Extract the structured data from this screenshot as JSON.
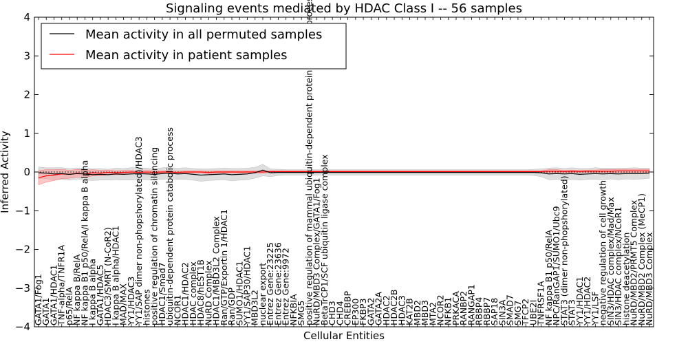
{
  "chart_data": {
    "type": "line",
    "title": "Signaling events mediated by HDAC Class I -- 56 samples",
    "xlabel": "Cellular Entities",
    "ylabel": "Inferred Activity",
    "ylim": [
      -4,
      4
    ],
    "yticks": [
      "4",
      "3",
      "2",
      "1",
      "0",
      "−1",
      "−2",
      "−3",
      "−4"
    ],
    "legend": {
      "placement": "top-left",
      "entries": [
        "Mean activity in all permuted samples",
        "Mean activity in patient samples"
      ]
    },
    "colors": {
      "permuted": "#000000",
      "patient": "#ff0000",
      "permuted_band": "#d8d8d8",
      "patient_band": "#ff9a9a"
    },
    "categories": [
      "GATA1/Fog1",
      "GATA1",
      "GATA1/HDAC1",
      "TNF-alpha/TNFR1A",
      "p65/RelA",
      "NF kappa B/RelA",
      "NF kappa B1 p50/RelA/I kappa B alpha",
      "I kappa B alpha",
      "GATA1/HDAC5",
      "HDAC3/SMRT (N-CoR2)",
      "I kappa B alpha/HDAC1",
      "MAD/MAX",
      "YY1/HDAC3",
      "YY1/SAP dimer non-phopshorylated)/HDAC3",
      "histones",
      "positive regulation of chromatin silencing",
      "HDAC1/Smad7",
      "ubiquitin-dependent protein catabolic process",
      "NCOR1",
      "HDAC1/HDAC2",
      "HDAC complex",
      "HDAC8/hEST1B",
      "NuRD Complex",
      "HDAC1/MBD3L2 Complex",
      "Ran/GTP/Exportin 1/HDAC1",
      "Ran/GDP",
      "SUMO1/HDAC1",
      "YY1/SAP30/HDAC1",
      "MBD3L2",
      "nuclear export",
      "Entrez Gene:23225",
      "Entrez Gene:23636",
      "Entrez Gene:9972",
      "NFKBIA",
      "SMG5",
      "positive regulation of mammal ubiquitin-dependent protein catabolic process",
      "NuRD/MBD3 Complex/GATA1/Fog1",
      "BetaTrCP1/SCF ubiquitin ligase complex",
      "CHD3",
      "CHD4",
      "CREBBP",
      "EP300",
      "FKBP3",
      "GATA2",
      "GATA2A",
      "HDAC2",
      "HDAC2B",
      "HDAC3",
      "KAT2B",
      "MBD2",
      "MBD3",
      "MTA2",
      "NCOR2",
      "NFKB1",
      "PRKACA",
      "RANBP2",
      "RANGAP1",
      "RBBP4",
      "RBBP7",
      "SAP18",
      "SIN3A",
      "SMAD7",
      "SMG7",
      "TFCP2",
      "UBE2I",
      "TNFRSF1A",
      "NF kappa B1 p50/RelA",
      "NPC/RanGAP1/SUMO1/Ubc9",
      "STAT3 (dimer non-phopshorylated)",
      "STAT3",
      "YY1/HDAC1",
      "YY1/HDAC2",
      "YY1/LSF",
      "negative regulation of cell growth",
      "SIN3/HDAC complex/Mad/Max",
      "SIN3/HDAC complex/NCoR1",
      "histone deacetylation",
      "NuRD/MBD2/PRMT5 Complex",
      "NuRD/MBD2 Complex (MeCP1)",
      "NuRD/MBD3 Complex"
    ],
    "x_tick_labels": [
      "GATA1/Fog1",
      "GATA1",
      "GATA1/HDAC1",
      "TNF-alpha/TNFR1A",
      "p65/RelA",
      "NF kappa B/RelA",
      "NF kappa B1 p50/RelA/I kappa B alpha",
      "I kappa B alpha",
      "GATA1/HDAC5",
      "HDAC3/SMRT (N-CoR2)",
      "I kappa B alpha/HDAC1",
      "MAD/MAX",
      "YY1/HDAC3",
      "YY1/SAP dimer non-phopshorylated)/HDAC3",
      "histones",
      "positive regulation of chromatin silencing",
      "HDAC1/Smad7",
      "ubiquitin-dependent protein catabolic process",
      "NCOR1",
      "HDAC1/HDAC2",
      "HDAC complex",
      "HDAC8/hEST1B",
      "NuRD Complex",
      "HDAC1/MBD3L2 Complex",
      "Ran/GTP/Exportin 1/HDAC1",
      "Ran/GDP",
      "SUMO1/HDAC1",
      "YY1/SAP30/HDAC1",
      "MBD3L2",
      "nuclear export",
      "Entrez Gene:23225",
      "Entrez Gene:23636",
      "Entrez Gene:9972",
      "NFKBIA",
      "SMG5",
      "positive regulation of mammal ubiquitin-dependent protein catabolic process",
      "NuRD/MBD3 Complex/GATA1/Fog1",
      "BetaTrCP1/SCF ubiquitin ligase complex",
      "CHD3",
      "CHD4",
      "CREBBP",
      "EP300",
      "FKBP3",
      "GATA2",
      "GATA2A",
      "HDAC2",
      "HDAC2B",
      "HDAC3",
      "KAT2B",
      "MBD2",
      "MBD3",
      "MTA2",
      "NCOR2",
      "NFKB1",
      "PRKACA",
      "RANBP2",
      "RANGAP1",
      "RBBP4",
      "RBBP7",
      "SAP18",
      "SIN3A",
      "SMAD7",
      "SMG7",
      "TFCP2",
      "UBE2I",
      "TNFRSF1A",
      "NF kappa B1 p50/RelA",
      "NPC/RanGAP1/SUMO1/Ubc9",
      "STAT3 (dimer non-phopshorylated)",
      "STAT3",
      "YY1/HDAC1",
      "YY1/HDAC2",
      "YY1/LSF",
      "negative regulation of cell growth",
      "SIN3/HDAC complex/Mad/Max",
      "SIN3/HDAC complex/NCoR1",
      "histone deacetylation",
      "NuRD/MBD2/PRMT5 Complex",
      "NuRD/MBD2 Complex (MeCP1)",
      "NuRD/MBD3 Complex"
    ],
    "series": [
      {
        "name": "Mean activity in all permuted samples",
        "color": "#000000",
        "values": [
          -0.02,
          -0.03,
          -0.05,
          -0.04,
          -0.06,
          -0.04,
          -0.05,
          -0.07,
          -0.06,
          -0.07,
          -0.05,
          -0.06,
          -0.05,
          -0.04,
          -0.05,
          -0.06,
          -0.04,
          -0.03,
          -0.05,
          -0.04,
          -0.06,
          -0.08,
          -0.07,
          -0.06,
          -0.05,
          -0.07,
          -0.06,
          -0.05,
          -0.02,
          0.05,
          -0.02,
          -0.01,
          -0.01,
          -0.01,
          -0.01,
          -0.01,
          -0.01,
          -0.01,
          -0.01,
          -0.01,
          -0.01,
          -0.01,
          -0.01,
          -0.01,
          -0.01,
          -0.01,
          -0.01,
          -0.01,
          -0.01,
          -0.01,
          -0.01,
          -0.01,
          -0.01,
          -0.01,
          -0.01,
          -0.01,
          -0.01,
          -0.01,
          -0.01,
          -0.01,
          -0.01,
          -0.01,
          -0.01,
          -0.01,
          -0.01,
          -0.02,
          -0.05,
          -0.04,
          -0.05,
          -0.04,
          -0.06,
          -0.05,
          -0.04,
          -0.05,
          -0.04,
          -0.05,
          -0.04,
          -0.04,
          -0.04,
          -0.03
        ],
        "band": [
          0.15,
          0.14,
          0.16,
          0.15,
          0.15,
          0.14,
          0.16,
          0.15,
          0.15,
          0.14,
          0.15,
          0.15,
          0.16,
          0.15,
          0.15,
          0.14,
          0.15,
          0.15,
          0.14,
          0.15,
          0.15,
          0.16,
          0.15,
          0.15,
          0.15,
          0.16,
          0.15,
          0.15,
          0.14,
          0.15,
          0.1,
          0.08,
          0.07,
          0.07,
          0.07,
          0.07,
          0.07,
          0.07,
          0.07,
          0.07,
          0.07,
          0.07,
          0.07,
          0.07,
          0.07,
          0.07,
          0.07,
          0.07,
          0.07,
          0.07,
          0.07,
          0.07,
          0.07,
          0.07,
          0.07,
          0.07,
          0.07,
          0.07,
          0.07,
          0.07,
          0.07,
          0.07,
          0.07,
          0.07,
          0.08,
          0.1,
          0.15,
          0.15,
          0.14,
          0.15,
          0.15,
          0.14,
          0.15,
          0.15,
          0.14,
          0.15,
          0.14,
          0.15,
          0.14,
          0.13
        ]
      },
      {
        "name": "Mean activity in patient samples",
        "color": "#ff0000",
        "values": [
          -0.15,
          -0.1,
          -0.08,
          -0.05,
          -0.06,
          -0.03,
          -0.05,
          -0.02,
          -0.03,
          -0.01,
          -0.02,
          -0.01,
          0.0,
          -0.01,
          0.0,
          -0.01,
          0.0,
          0.0,
          -0.01,
          0.0,
          0.0,
          0.0,
          -0.01,
          0.0,
          0.0,
          0.0,
          0.0,
          0.0,
          0.0,
          0.0,
          0.01,
          0.01,
          0.01,
          0.01,
          0.01,
          0.01,
          0.01,
          0.01,
          0.01,
          0.01,
          0.01,
          0.01,
          0.01,
          0.01,
          0.01,
          0.01,
          0.01,
          0.01,
          0.01,
          0.01,
          0.01,
          0.01,
          0.01,
          0.01,
          0.01,
          0.01,
          0.01,
          0.01,
          0.01,
          0.01,
          0.01,
          0.01,
          0.01,
          0.01,
          0.01,
          0.01,
          0.02,
          0.02,
          0.01,
          0.02,
          0.01,
          0.02,
          0.02,
          0.02,
          0.02,
          0.03,
          0.03,
          0.03,
          0.03,
          0.03
        ],
        "band": [
          0.18,
          0.16,
          0.14,
          0.12,
          0.1,
          0.1,
          0.09,
          0.08,
          0.07,
          0.06,
          0.05,
          0.05,
          0.04,
          0.04,
          0.04,
          0.04,
          0.03,
          0.03,
          0.03,
          0.03,
          0.03,
          0.03,
          0.03,
          0.03,
          0.03,
          0.03,
          0.03,
          0.03,
          0.03,
          0.03,
          0.02,
          0.02,
          0.02,
          0.02,
          0.02,
          0.02,
          0.02,
          0.02,
          0.02,
          0.02,
          0.02,
          0.02,
          0.02,
          0.02,
          0.02,
          0.02,
          0.02,
          0.02,
          0.02,
          0.02,
          0.02,
          0.02,
          0.02,
          0.02,
          0.02,
          0.02,
          0.02,
          0.02,
          0.02,
          0.02,
          0.02,
          0.02,
          0.02,
          0.02,
          0.02,
          0.02,
          0.04,
          0.04,
          0.03,
          0.03,
          0.03,
          0.03,
          0.03,
          0.04,
          0.04,
          0.04,
          0.04,
          0.04,
          0.04,
          0.04
        ]
      }
    ]
  }
}
